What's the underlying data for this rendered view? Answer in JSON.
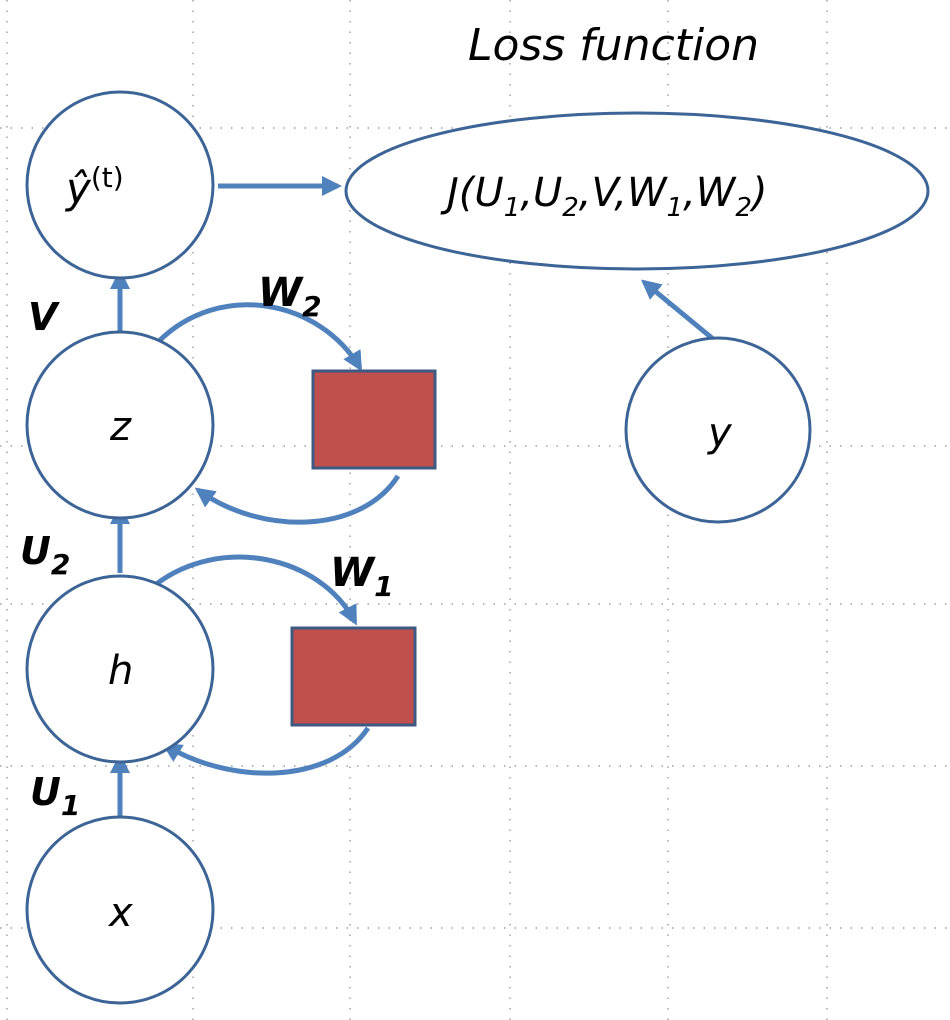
{
  "title": "Loss function",
  "loss_node": {
    "label": "J(U",
    "s1": "1",
    "p1": ",U",
    "s2": "2",
    "p2": ",V,W",
    "s3": "1",
    "p3": ",W",
    "s4": "2",
    "p4": ")"
  },
  "nodes": {
    "yhat": {
      "base": "ŷ",
      "sup": "(t)"
    },
    "z": "z",
    "h": "h",
    "x": "x",
    "y": "y"
  },
  "weights": {
    "V": "V",
    "W2": {
      "base": "W",
      "sub": "2"
    },
    "U2": {
      "base": "U",
      "sub": "2"
    },
    "W1": {
      "base": "W",
      "sub": "1"
    },
    "U1": {
      "base": "U",
      "sub": "1"
    }
  },
  "colors": {
    "node_stroke": "#3c6496",
    "edge": "#4f81bd",
    "box_fill": "#c0504d"
  }
}
